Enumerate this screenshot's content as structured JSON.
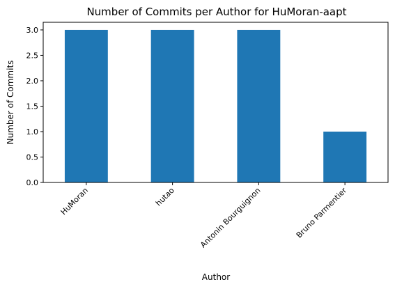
{
  "chart_data": {
    "type": "bar",
    "title": "Number of Commits per Author for HuMoran-aapt",
    "xlabel": "Author",
    "ylabel": "Number of Commits",
    "categories": [
      "HuMoran",
      "hutao",
      "Antonin Bourguignon",
      "Bruno Parmentier"
    ],
    "values": [
      3,
      3,
      3,
      1
    ],
    "ylim": [
      0,
      3.15
    ],
    "yticks": [
      "0.0",
      "0.5",
      "1.0",
      "1.5",
      "2.0",
      "2.5",
      "3.0"
    ],
    "bar_color": "#1f77b4",
    "grid": false,
    "legend": "none"
  }
}
